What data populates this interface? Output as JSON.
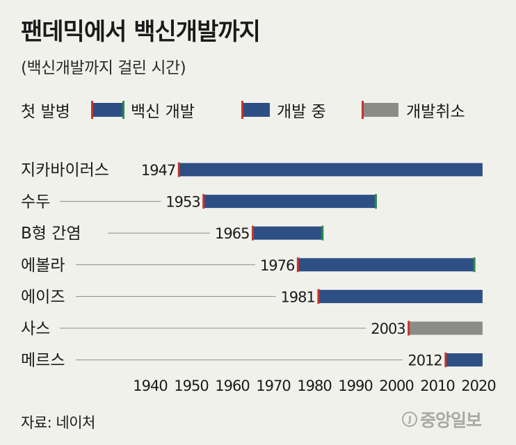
{
  "header": {
    "title": "팬데믹에서 백신개발까지",
    "subtitle": "(백신개발까지 걸린 시간)"
  },
  "legend": {
    "first_outbreak": "첫 발병",
    "vaccine_developed": "백신 개발",
    "in_development": "개발 중",
    "cancelled": "개발취소"
  },
  "colors": {
    "developed": "#2d4f84",
    "in_progress": "#2d4f84",
    "cancelled": "#8c8c86",
    "start_marker": "#c8332c",
    "end_marker": "#2b8a4a",
    "leader_line": "#8a8a8a"
  },
  "chart_data": {
    "type": "bar",
    "orientation": "horizontal-range",
    "xlim": [
      1940,
      2021
    ],
    "x_ticks": [
      "1940",
      "1950",
      "1960",
      "1970",
      "1980",
      "1990",
      "2000",
      "2010",
      "2020"
    ],
    "grid": false,
    "legend_position": "top",
    "series": [
      {
        "name": "지카바이러스",
        "start": 1947,
        "start_label": "1947",
        "end": 2021,
        "status": "in_progress"
      },
      {
        "name": "수두",
        "start": 1953,
        "start_label": "1953",
        "end": 1995,
        "status": "developed"
      },
      {
        "name": "B형 간염",
        "start": 1965,
        "start_label": "1965",
        "end": 1982,
        "status": "developed"
      },
      {
        "name": "에볼라",
        "start": 1976,
        "start_label": "1976",
        "end": 2019,
        "status": "developed"
      },
      {
        "name": "에이즈",
        "start": 1981,
        "start_label": "1981",
        "end": 2021,
        "status": "in_progress"
      },
      {
        "name": "사스",
        "start": 2003,
        "start_label": "2003",
        "end": 2021,
        "status": "cancelled"
      },
      {
        "name": "메르스",
        "start": 2012,
        "start_label": "2012",
        "end": 2021,
        "status": "in_progress"
      }
    ]
  },
  "footer": {
    "source": "자료: 네이처",
    "brand_symbol": "J",
    "brand": "중앙일보"
  }
}
